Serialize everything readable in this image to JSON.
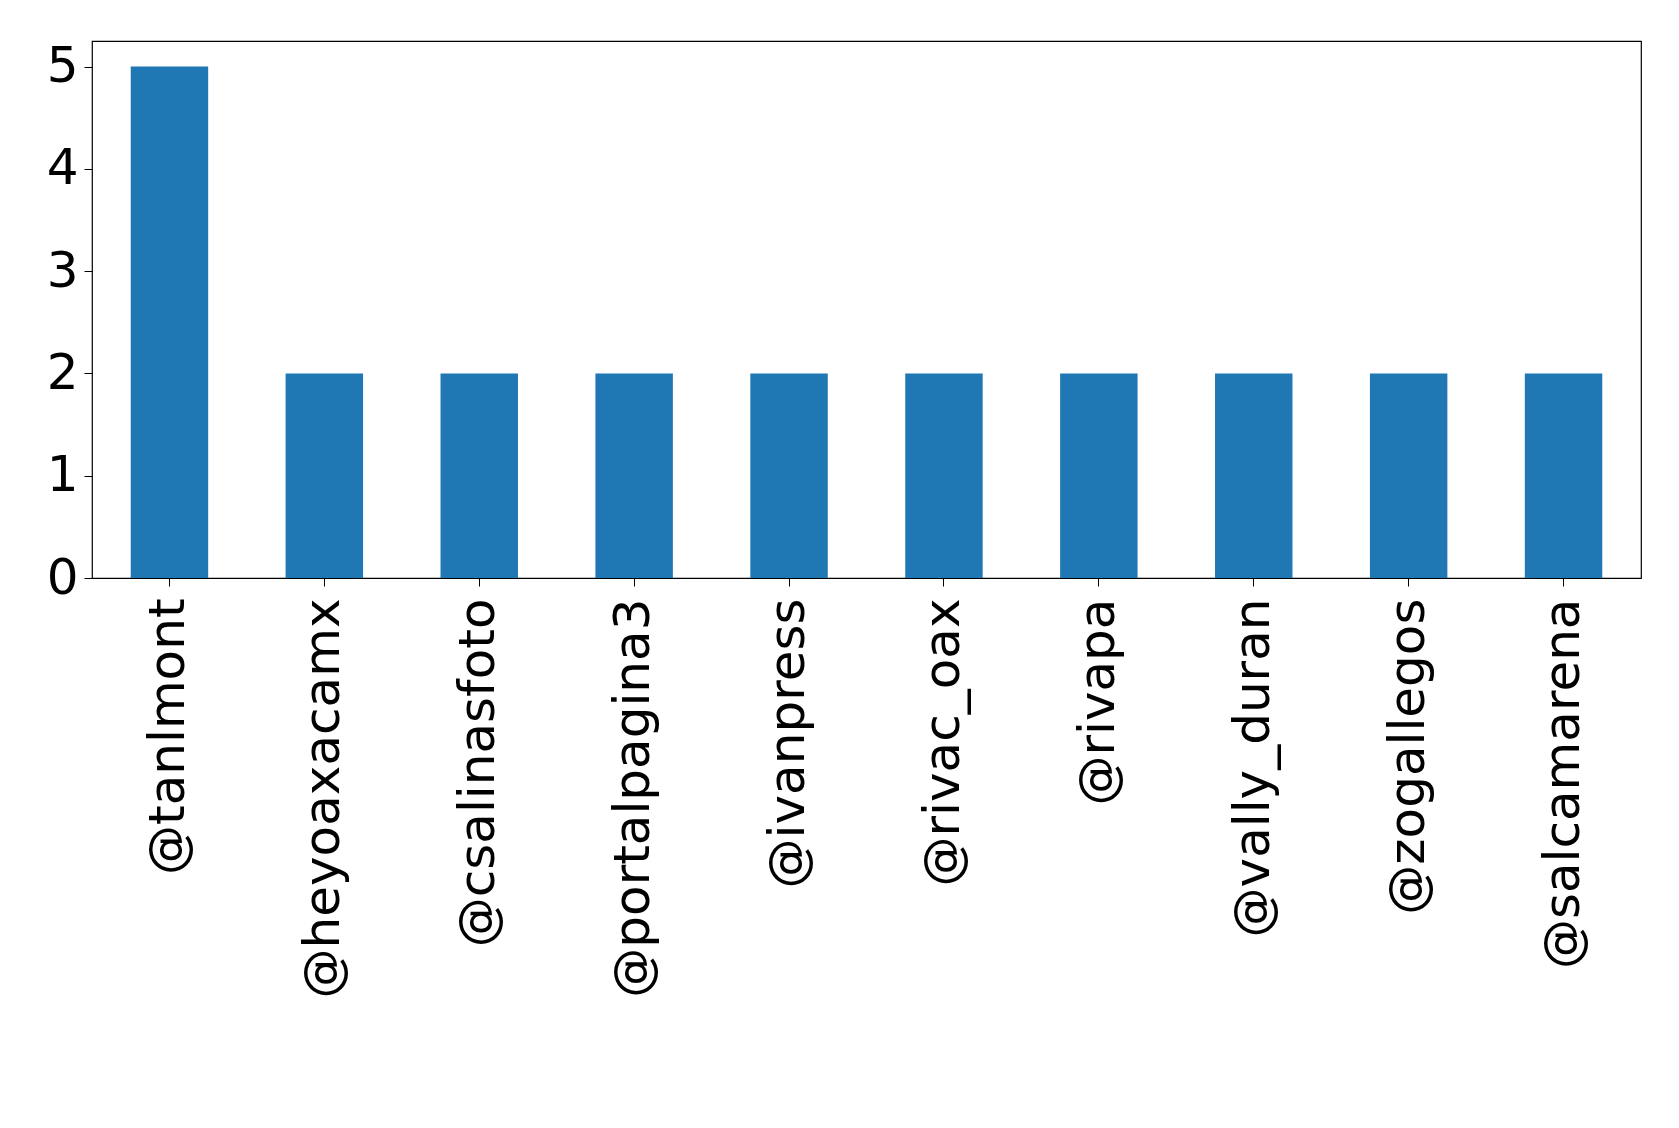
{
  "chart_data": {
    "type": "bar",
    "categories": [
      "@tanlmont",
      "@heyoaxacamx",
      "@csalinasfoto",
      "@portalpagina3",
      "@ivanpress",
      "@rivac_oax",
      "@rivapa",
      "@vally_duran",
      "@zogallegos",
      "@salcamarena"
    ],
    "values": [
      5,
      2,
      2,
      2,
      2,
      2,
      2,
      2,
      2,
      2
    ],
    "color": "#1f77b4",
    "ylim": [
      0,
      5.25
    ],
    "yticks": [
      0,
      1,
      2,
      3,
      4,
      5
    ],
    "grid": false
  }
}
